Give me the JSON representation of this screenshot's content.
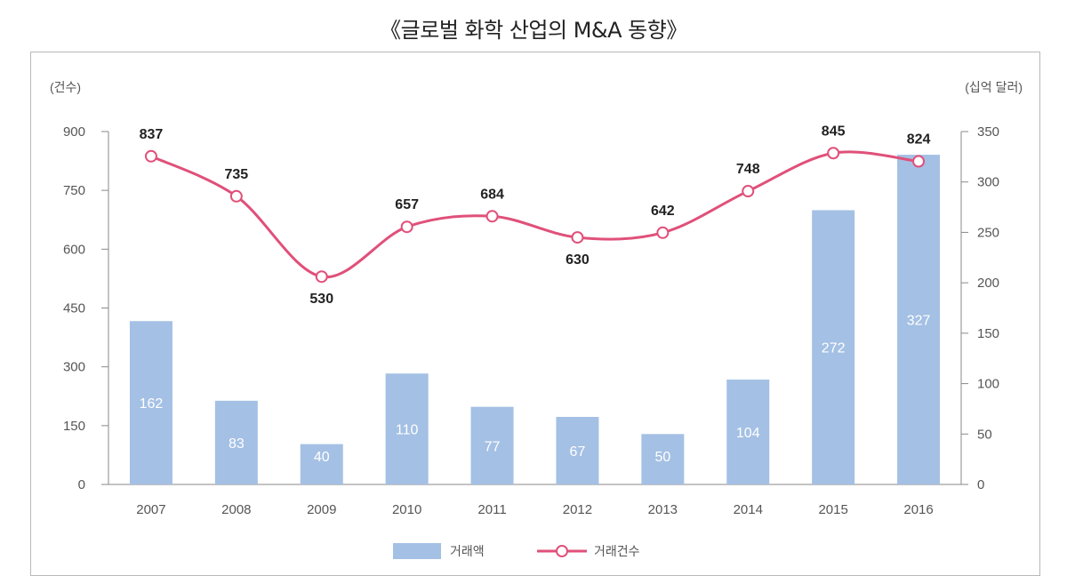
{
  "title": "《글로벌 화학 산업의 M&A 동향》",
  "chart_data": {
    "type": "bar",
    "title": "《글로벌 화학 산업의 M&A 동향》",
    "categories": [
      "2007",
      "2008",
      "2009",
      "2010",
      "2011",
      "2012",
      "2013",
      "2014",
      "2015",
      "2016"
    ],
    "series": [
      {
        "name": "거래액",
        "type": "bar",
        "axis": "right",
        "values": [
          162,
          83,
          40,
          110,
          77,
          67,
          50,
          104,
          272,
          327
        ],
        "color": "#a4c0e4",
        "label_color": "#ffffff"
      },
      {
        "name": "거래건수",
        "type": "line",
        "axis": "left",
        "values": [
          837,
          735,
          530,
          657,
          684,
          630,
          642,
          748,
          845,
          824
        ],
        "color": "#e0507a"
      }
    ],
    "left_axis": {
      "unit_label": "(건수)",
      "ylim": [
        0,
        900
      ],
      "ticks": [
        "0",
        "150",
        "300",
        "450",
        "600",
        "750",
        "900"
      ]
    },
    "right_axis": {
      "unit_label": "(십억 달러)",
      "ylim": [
        0,
        350
      ],
      "ticks": [
        "0",
        "50",
        "100",
        "150",
        "200",
        "250",
        "300",
        "350"
      ]
    },
    "grid": false,
    "legend": {
      "position": "bottom",
      "entries": [
        "거래액",
        "거래건수"
      ]
    }
  }
}
